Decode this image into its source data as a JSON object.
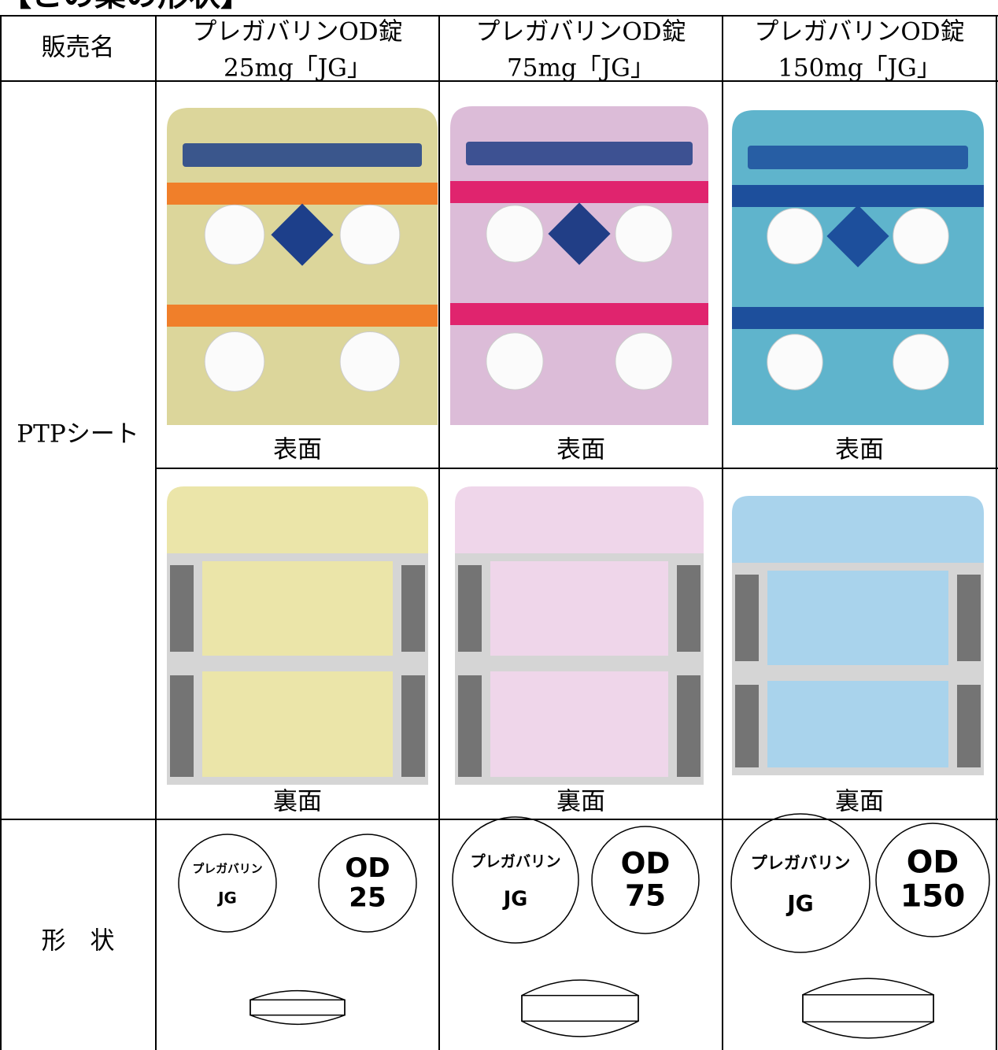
{
  "title": "【この薬の形状】",
  "table": {
    "header": {
      "label": "販売名",
      "names": [
        [
          "プレガバリンOD錠",
          "25mg「JG」"
        ],
        [
          "プレガバリンOD錠",
          "75mg「JG」"
        ],
        [
          "プレガバリンOD錠",
          "150mg「JG」"
        ]
      ]
    },
    "ptp": {
      "label": "PTPシート",
      "front": [
        "表面",
        "表面",
        "表面"
      ],
      "back": [
        "裏面",
        "裏面",
        "裏面"
      ]
    },
    "shape": {
      "label": "形　状",
      "imprints": [
        [
          [
            "プレガバリン",
            "JG"
          ],
          [
            "OD",
            "25"
          ]
        ],
        [
          [
            "プレガバリン",
            "JG"
          ],
          [
            "OD",
            "75"
          ]
        ],
        [
          [
            "プレガバリン",
            "JG"
          ],
          [
            "OD",
            "150"
          ]
        ]
      ]
    }
  }
}
